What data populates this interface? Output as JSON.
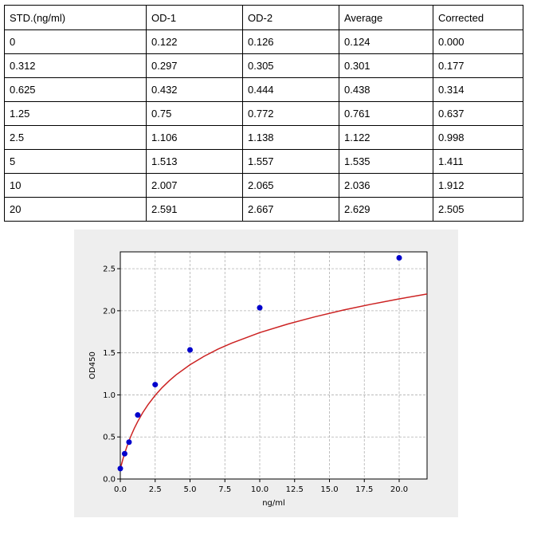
{
  "table": {
    "headers": [
      "STD.(ng/ml)",
      "OD-1",
      "OD-2",
      "Average",
      "Corrected"
    ],
    "rows": [
      [
        "0",
        "0.122",
        "0.126",
        "0.124",
        "0.000"
      ],
      [
        "0.312",
        "0.297",
        "0.305",
        "0.301",
        "0.177"
      ],
      [
        "0.625",
        "0.432",
        "0.444",
        "0.438",
        "0.314"
      ],
      [
        "1.25",
        "0.75",
        "0.772",
        "0.761",
        "0.637"
      ],
      [
        "2.5",
        "1.106",
        "1.138",
        "1.122",
        "0.998"
      ],
      [
        "5",
        "1.513",
        "1.557",
        "1.535",
        "1.411"
      ],
      [
        "10",
        "2.007",
        "2.065",
        "2.036",
        "1.912"
      ],
      [
        "20",
        "2.591",
        "2.667",
        "2.629",
        "2.505"
      ]
    ]
  },
  "chart_data": {
    "type": "scatter",
    "xlabel": "ng/ml",
    "ylabel": "OD450",
    "xlim": [
      0,
      22
    ],
    "ylim": [
      0,
      2.7
    ],
    "grid": true,
    "x_ticks": [
      "0.0",
      "2.5",
      "5.0",
      "7.5",
      "10.0",
      "12.5",
      "15.0",
      "17.5",
      "20.0"
    ],
    "y_ticks": [
      "0.0",
      "0.5",
      "1.0",
      "1.5",
      "2.0",
      "2.5"
    ],
    "points": {
      "x": [
        0,
        0.312,
        0.625,
        1.25,
        2.5,
        5,
        10,
        20
      ],
      "y": [
        0.124,
        0.301,
        0.438,
        0.761,
        1.122,
        1.535,
        2.036,
        2.629
      ]
    },
    "fit_curve": {
      "x": [
        0,
        0.1,
        0.2,
        0.312,
        0.45,
        0.625,
        0.8,
        1,
        1.25,
        1.6,
        2,
        2.5,
        3,
        3.5,
        4,
        5,
        6,
        7,
        8,
        10,
        12,
        14,
        16,
        18,
        20,
        22
      ],
      "y": [
        0.124,
        0.185,
        0.244,
        0.305,
        0.375,
        0.455,
        0.526,
        0.601,
        0.684,
        0.786,
        0.887,
        0.995,
        1.087,
        1.167,
        1.238,
        1.359,
        1.458,
        1.543,
        1.616,
        1.74,
        1.842,
        1.93,
        2.008,
        2.078,
        2.141,
        2.199
      ]
    },
    "colors": {
      "points": "#0000cc",
      "curve": "#cc2222",
      "grid": "#b0b0b0",
      "background": "#eeeeee",
      "plot_area": "#ffffff"
    }
  }
}
